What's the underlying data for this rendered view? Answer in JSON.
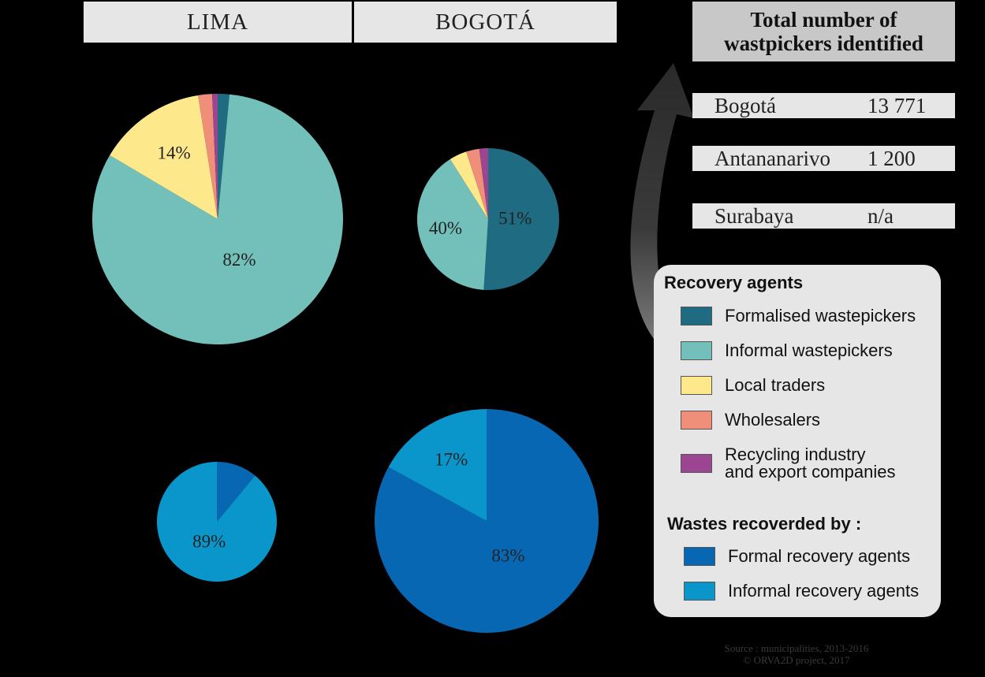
{
  "headers": {
    "lima": "LIMA",
    "bogota": "BOGOTÁ"
  },
  "total_box": {
    "title_line1": "Total number of",
    "title_line2": "wastpickers identified"
  },
  "counts": [
    {
      "city": "Bogotá",
      "value": "13 771"
    },
    {
      "city": "Antananarivo",
      "value": "1 200"
    },
    {
      "city": "Surabaya",
      "value": "n/a"
    }
  ],
  "legend": {
    "agents_title": "Recovery agents",
    "agents": [
      {
        "label": "Formalised wastepickers",
        "color": "#1f6b82"
      },
      {
        "label": "Informal wastepickers",
        "color": "#72c0b9"
      },
      {
        "label": "Local traders",
        "color": "#fde98c"
      },
      {
        "label": "Wholesalers",
        "color": "#ef8f7a"
      },
      {
        "label_line1": "Recycling industry",
        "label_line2": "and export companies",
        "color": "#9c4591"
      }
    ],
    "wastes_title": "Wastes recoverded by :",
    "wastes": [
      {
        "label": "Formal recovery agents",
        "color": "#0867b3"
      },
      {
        "label": "Informal recovery agents",
        "color": "#0a96cb"
      }
    ]
  },
  "source": {
    "line1": "Source : municipalities, 2013-2016",
    "line2": "© ORVA2D project, 2017"
  },
  "chart_data": [
    {
      "type": "pie",
      "slices": [
        {
          "series": "Formalised wastepickers",
          "value": 1.5,
          "color": "#1f6b82",
          "label": ""
        },
        {
          "series": "Informal wastepickers",
          "value": 82,
          "color": "#72c0b9",
          "label": "82%"
        },
        {
          "series": "Local traders",
          "value": 14,
          "color": "#fde98c",
          "label": "14%"
        },
        {
          "series": "Wholesalers",
          "value": 1.8,
          "color": "#ef8f7a",
          "label": ""
        },
        {
          "series": "Recycling industry and export companies",
          "value": 0.7,
          "color": "#9c4591",
          "label": ""
        }
      ]
    },
    {
      "type": "pie",
      "slices": [
        {
          "series": "Formalised wastepickers",
          "value": 51,
          "color": "#1f6b82",
          "label": "51%"
        },
        {
          "series": "Informal wastepickers",
          "value": 40,
          "color": "#72c0b9",
          "label": "40%"
        },
        {
          "series": "Local traders",
          "value": 4,
          "color": "#fde98c",
          "label": ""
        },
        {
          "series": "Wholesalers",
          "value": 3,
          "color": "#ef8f7a",
          "label": ""
        },
        {
          "series": "Recycling industry and export companies",
          "value": 2,
          "color": "#9c4591",
          "label": ""
        }
      ]
    },
    {
      "type": "pie",
      "slices": [
        {
          "series": "Formal recovery agents",
          "value": 11,
          "color": "#0867b3",
          "label": ""
        },
        {
          "series": "Informal recovery agents",
          "value": 89,
          "color": "#0a96cb",
          "label": "89%"
        }
      ]
    },
    {
      "type": "pie",
      "slices": [
        {
          "series": "Formal recovery agents",
          "value": 83,
          "color": "#0867b3",
          "label": "83%"
        },
        {
          "series": "Informal recovery agents",
          "value": 17,
          "color": "#0a96cb",
          "label": "17%"
        }
      ]
    }
  ]
}
